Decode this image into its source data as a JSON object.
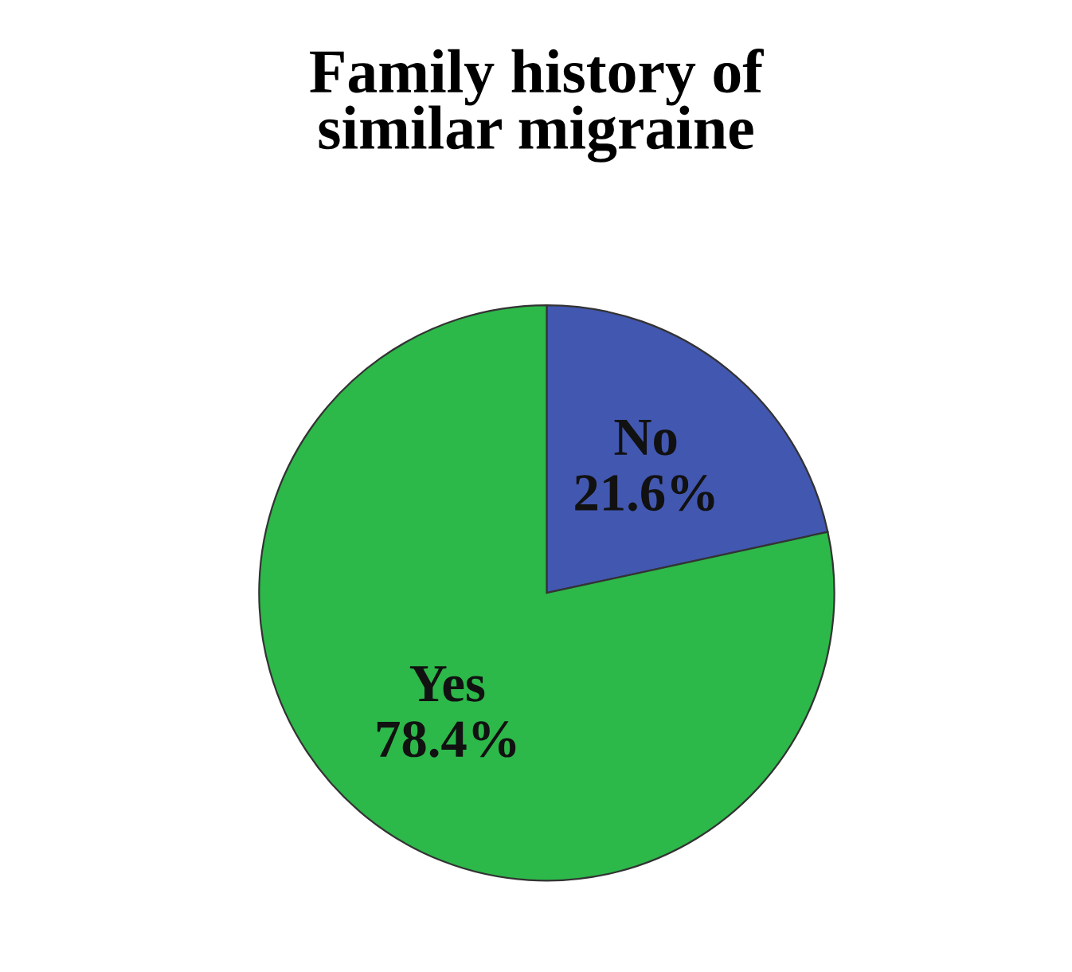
{
  "chart_data": {
    "type": "pie",
    "title": "Family history of\nsimilar migraine",
    "categories": [
      "No",
      "Yes"
    ],
    "values": [
      21.6,
      78.4
    ],
    "value_labels": [
      "21.6%",
      "78.4%"
    ],
    "colors": [
      "#4257b0",
      "#2db84a"
    ],
    "legend": false
  }
}
